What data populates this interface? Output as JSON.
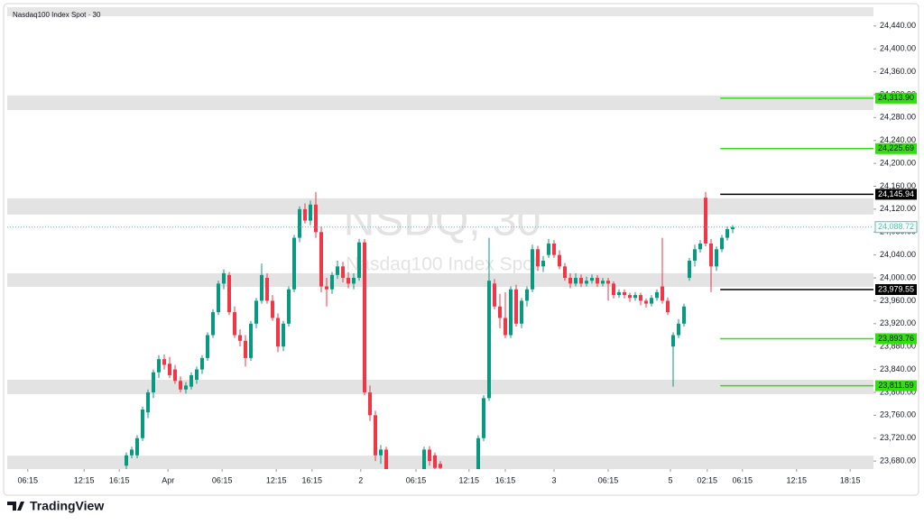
{
  "chart_data": {
    "type": "candlestick",
    "title": "Nasdaq100 Index Spot · 30",
    "watermark": "NSDQ, 30",
    "watermark_subtitle": "Nasdaq100 Index Spot",
    "brand": "TradingView",
    "up_color": "#089981",
    "down_color": "#f23645",
    "xlim": [
      0,
      160
    ],
    "ylim": [
      23666,
      24457
    ],
    "xticks": [
      {
        "value": 3.8,
        "label": "06:15"
      },
      {
        "value": 14.2,
        "label": "12:15"
      },
      {
        "value": 20.7,
        "label": "16:15"
      },
      {
        "value": 29.7,
        "label": "Apr"
      },
      {
        "value": 39.7,
        "label": "06:15"
      },
      {
        "value": 49.7,
        "label": "12:15"
      },
      {
        "value": 56.3,
        "label": "16:15"
      },
      {
        "value": 65.3,
        "label": "2"
      },
      {
        "value": 75.5,
        "label": "06:15"
      },
      {
        "value": 85.3,
        "label": "12:15"
      },
      {
        "value": 92,
        "label": "16:15"
      },
      {
        "value": 101,
        "label": "3"
      },
      {
        "value": 111,
        "label": "06:15"
      },
      {
        "value": 122.5,
        "label": "5"
      },
      {
        "value": 129.3,
        "label": "02:15"
      },
      {
        "value": 135.8,
        "label": "06:15"
      },
      {
        "value": 145.8,
        "label": "12:15"
      },
      {
        "value": 155.7,
        "label": "18:15"
      }
    ],
    "yticks": [
      {
        "value": 23680,
        "label": "23,680.00"
      },
      {
        "value": 23720,
        "label": "23,720.00"
      },
      {
        "value": 23760,
        "label": "23,760.00"
      },
      {
        "value": 23800,
        "label": "23,800.00"
      },
      {
        "value": 23840,
        "label": "23,840.00"
      },
      {
        "value": 23880,
        "label": "23,880.00"
      },
      {
        "value": 23920,
        "label": "23,920.00"
      },
      {
        "value": 23960,
        "label": "23,960.00"
      },
      {
        "value": 24000,
        "label": "24,000.00"
      },
      {
        "value": 24040,
        "label": "24,040.00"
      },
      {
        "value": 24080,
        "label": "24,080.00"
      },
      {
        "value": 24120,
        "label": "24,120.00"
      },
      {
        "value": 24160,
        "label": "24,160.00"
      },
      {
        "value": 24200,
        "label": "24,200.00"
      },
      {
        "value": 24240,
        "label": "24,240.00"
      },
      {
        "value": 24280,
        "label": "24,280.00"
      },
      {
        "value": 24320,
        "label": "24,320.00"
      },
      {
        "value": 24360,
        "label": "24,360.00"
      },
      {
        "value": 24400,
        "label": "24,400.00"
      },
      {
        "value": 24440,
        "label": "24,440.00"
      }
    ],
    "zones": [
      [
        24318.6,
        24293
      ],
      [
        24139,
        24110.5
      ],
      [
        24008,
        23984.3
      ],
      [
        23822,
        23796.7
      ],
      [
        23689.4,
        23665.8
      ]
    ],
    "levels": [
      {
        "value": 24313.9,
        "label": "24,313.90",
        "color": "#33dd11",
        "x": 131.7
      },
      {
        "value": 24225.69,
        "label": "24,225.69",
        "color": "#33dd11",
        "x": 131.7
      },
      {
        "value": 24145.94,
        "label": "24,145.94",
        "color": "#000000",
        "x": 131.7
      },
      {
        "value": 24088.72,
        "label": "24,088.72",
        "color": "#4cc4b0",
        "x": 0
      },
      {
        "value": 23979.55,
        "label": "23,979.55",
        "color": "#000000",
        "x": 131.7
      },
      {
        "value": 23893.76,
        "label": "23,893.76",
        "color": "#33dd11",
        "x": 131.7
      },
      {
        "value": 23811.59,
        "label": "23,811.59",
        "color": "#33dd11",
        "x": 131.7
      }
    ],
    "ohlc": [
      [
        22,
        23672,
        23695,
        23664,
        23690
      ],
      [
        23,
        23690,
        23705,
        23685,
        23700
      ],
      [
        24,
        23690,
        23725,
        23685,
        23720
      ],
      [
        25,
        23720,
        23775,
        23715,
        23770
      ],
      [
        26,
        23765,
        23805,
        23755,
        23800
      ],
      [
        27,
        23800,
        23840,
        23790,
        23835
      ],
      [
        28,
        23835,
        23865,
        23825,
        23858
      ],
      [
        29,
        23858,
        23866,
        23840,
        23848
      ],
      [
        30,
        23850,
        23862,
        23825,
        23830
      ],
      [
        31,
        23840,
        23848,
        23815,
        23820
      ],
      [
        32,
        23820,
        23828,
        23800,
        23805
      ],
      [
        33,
        23805,
        23818,
        23798,
        23812
      ],
      [
        34,
        23810,
        23835,
        23805,
        23830
      ],
      [
        35,
        23822,
        23845,
        23815,
        23840
      ],
      [
        36,
        23840,
        23865,
        23832,
        23860
      ],
      [
        37,
        23860,
        23905,
        23855,
        23900
      ],
      [
        38,
        23900,
        23945,
        23895,
        23940
      ],
      [
        39,
        23940,
        23995,
        23935,
        23990
      ],
      [
        40,
        23990,
        24015,
        23980,
        24008
      ],
      [
        41,
        24005,
        24010,
        23935,
        23940
      ],
      [
        42,
        23940,
        23950,
        23895,
        23900
      ],
      [
        43,
        23900,
        23910,
        23880,
        23890
      ],
      [
        44,
        23890,
        23900,
        23845,
        23860
      ],
      [
        45,
        23860,
        23925,
        23855,
        23920
      ],
      [
        46,
        23920,
        23965,
        23912,
        23960
      ],
      [
        47,
        23960,
        24025,
        23955,
        24005
      ],
      [
        48,
        24000,
        24008,
        23955,
        23960
      ],
      [
        49,
        23960,
        23970,
        23925,
        23930
      ],
      [
        50,
        23930,
        23938,
        23870,
        23880
      ],
      [
        51,
        23880,
        23925,
        23872,
        23920
      ],
      [
        52,
        23920,
        23985,
        23915,
        23980
      ],
      [
        53,
        23980,
        24075,
        23975,
        24070
      ],
      [
        54,
        24070,
        24125,
        24062,
        24120
      ],
      [
        55,
        24120,
        24130,
        24095,
        24100
      ],
      [
        56,
        24100,
        24135,
        24092,
        24128
      ],
      [
        57,
        24128,
        24150,
        24070,
        24080
      ],
      [
        58,
        24080,
        24090,
        23975,
        23985
      ],
      [
        59,
        23985,
        24000,
        23950,
        23980
      ],
      [
        60,
        23980,
        24010,
        23972,
        24005
      ],
      [
        61,
        24005,
        24030,
        23998,
        24020
      ],
      [
        62,
        24020,
        24028,
        23992,
        24000
      ],
      [
        63,
        24000,
        24010,
        23982,
        23990
      ],
      [
        64,
        23990,
        24008,
        23980,
        24000
      ],
      [
        65,
        24000,
        24068,
        23995,
        24062
      ],
      [
        66,
        24062,
        24068,
        23795,
        23800
      ],
      [
        67,
        23800,
        23812,
        23750,
        23760
      ],
      [
        68,
        23760,
        23768,
        23680,
        23690
      ],
      [
        69,
        23690,
        23708,
        23675,
        23700
      ],
      [
        70,
        23700,
        23705,
        23650,
        23660
      ],
      [
        77,
        23660,
        23705,
        23650,
        23700
      ],
      [
        78,
        23700,
        23706,
        23672,
        23680
      ],
      [
        79,
        23690,
        23695,
        23660,
        23668
      ],
      [
        80,
        23675,
        23680,
        23660,
        23668
      ],
      [
        87,
        23660,
        23725,
        23650,
        23720
      ],
      [
        88,
        23720,
        23795,
        23715,
        23790
      ],
      [
        89,
        23790,
        24070,
        23785,
        23995
      ],
      [
        90,
        23990,
        23998,
        23945,
        23950
      ],
      [
        91,
        23950,
        23972,
        23912,
        23930
      ],
      [
        92,
        23930,
        23975,
        23895,
        23900
      ],
      [
        93,
        23900,
        23985,
        23895,
        23980
      ],
      [
        94,
        23980,
        23988,
        23915,
        23920
      ],
      [
        95,
        23920,
        23965,
        23912,
        23960
      ],
      [
        96,
        23960,
        23985,
        23950,
        23980
      ],
      [
        97,
        23980,
        24058,
        23975,
        24050
      ],
      [
        98,
        24050,
        24056,
        24012,
        24020
      ],
      [
        99,
        24020,
        24038,
        24010,
        24030
      ],
      [
        100,
        24040,
        24068,
        24035,
        24060
      ],
      [
        101,
        24060,
        24066,
        24035,
        24040
      ],
      [
        102,
        24040,
        24048,
        24015,
        24020
      ],
      [
        103,
        24020,
        24026,
        23995,
        24000
      ],
      [
        104,
        24000,
        24008,
        23982,
        23990
      ],
      [
        105,
        23990,
        24008,
        23985,
        24000
      ],
      [
        106,
        24000,
        24006,
        23984,
        23990
      ],
      [
        107,
        23990,
        24002,
        23985,
        23995
      ],
      [
        108,
        23995,
        24006,
        23990,
        24000
      ],
      [
        109,
        24000,
        24005,
        23984,
        23990
      ],
      [
        110,
        23990,
        24000,
        23985,
        23995
      ],
      [
        111,
        23995,
        24000,
        23960,
        23990
      ],
      [
        112,
        23990,
        23994,
        23964,
        23970
      ],
      [
        113,
        23970,
        23980,
        23965,
        23975
      ],
      [
        114,
        23975,
        23980,
        23964,
        23970
      ],
      [
        115,
        23970,
        23974,
        23958,
        23965
      ],
      [
        116,
        23965,
        23975,
        23960,
        23970
      ],
      [
        117,
        23970,
        23974,
        23952,
        23960
      ],
      [
        118,
        23960,
        23964,
        23948,
        23955
      ],
      [
        119,
        23955,
        23970,
        23950,
        23965
      ],
      [
        120,
        23965,
        23980,
        23960,
        23975
      ],
      [
        121,
        23985,
        24070,
        23955,
        23960
      ],
      [
        122,
        23960,
        23966,
        23935,
        23940
      ],
      [
        123,
        23880,
        23905,
        23810,
        23900
      ],
      [
        124,
        23900,
        23928,
        23895,
        23920
      ],
      [
        125,
        23920,
        23955,
        23915,
        23950
      ],
      [
        126,
        24000,
        24035,
        23995,
        24030
      ],
      [
        127,
        24030,
        24058,
        24020,
        24050
      ],
      [
        128,
        24050,
        24066,
        24044,
        24060
      ],
      [
        129,
        24140,
        24150,
        24055,
        24060
      ],
      [
        130,
        24060,
        24068,
        23975,
        24020
      ],
      [
        131,
        24020,
        24055,
        24012,
        24050
      ],
      [
        132,
        24050,
        24075,
        24045,
        24070
      ],
      [
        133,
        24070,
        24090,
        24065,
        24085
      ],
      [
        134,
        24085,
        24092,
        24078,
        24088.72
      ]
    ]
  }
}
